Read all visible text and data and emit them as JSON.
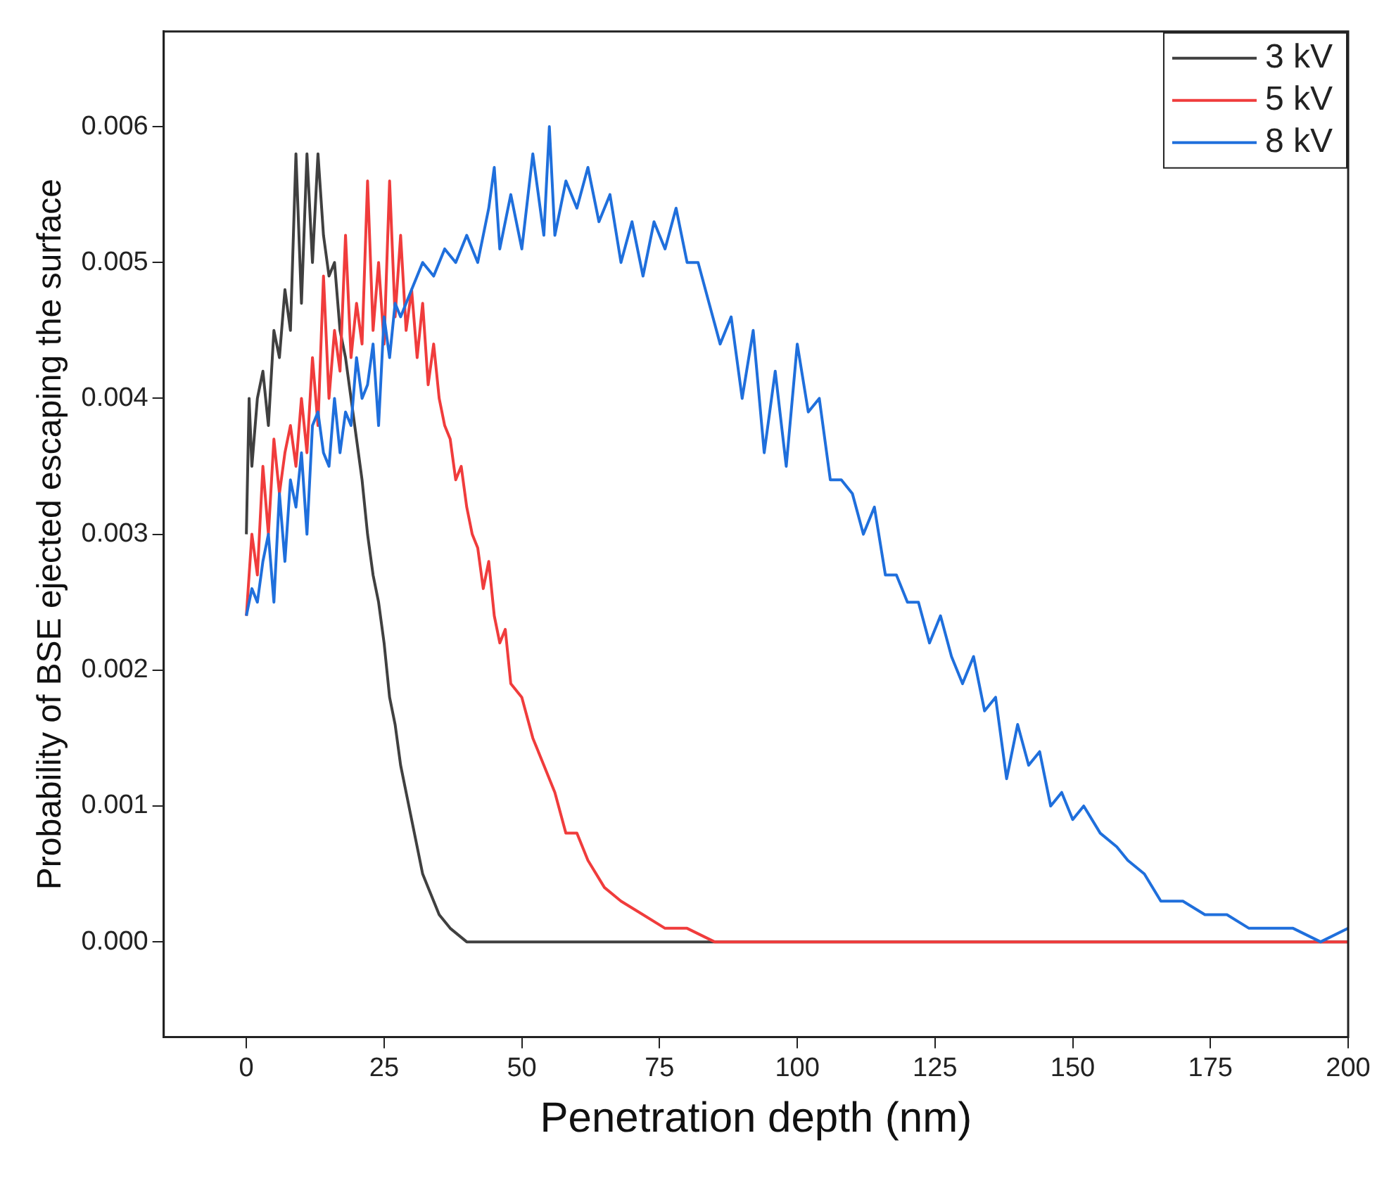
{
  "chart_data": {
    "type": "line",
    "xlabel": "Penetration depth (nm)",
    "ylabel": "Probability of BSE ejected escaping the surface",
    "xlim": [
      -15,
      200
    ],
    "xticks": [
      0,
      25,
      50,
      75,
      100,
      125,
      150,
      175,
      200
    ],
    "ylim": [
      -0.0007,
      0.0067
    ],
    "yticks": [
      {
        "value": 0,
        "label": "0.000"
      },
      {
        "value": 0.001,
        "label": "0.001"
      },
      {
        "value": 0.002,
        "label": "0.002"
      },
      {
        "value": 0.003,
        "label": "0.003"
      },
      {
        "value": 0.004,
        "label": "0.004"
      },
      {
        "value": 0.005,
        "label": "0.005"
      },
      {
        "value": 0.006,
        "label": "0.006"
      }
    ],
    "grid": false,
    "legend": "top right",
    "marker": "none",
    "line_style": "solid",
    "series": [
      {
        "name": "3 kV",
        "color": "#404040",
        "x": [
          0,
          0.5,
          1,
          2,
          3,
          4,
          5,
          6,
          7,
          8,
          9,
          10,
          11,
          12,
          13,
          14,
          15,
          16,
          17,
          18,
          19,
          20,
          21,
          22,
          23,
          24,
          25,
          26,
          27,
          28,
          29,
          30,
          31,
          32,
          33,
          34,
          35,
          37,
          40,
          42,
          200
        ],
        "values": [
          0.003,
          0.004,
          0.0035,
          0.004,
          0.0042,
          0.0038,
          0.0045,
          0.0043,
          0.0048,
          0.0045,
          0.0058,
          0.0047,
          0.0058,
          0.005,
          0.0058,
          0.0052,
          0.0049,
          0.005,
          0.0045,
          0.0043,
          0.004,
          0.0037,
          0.0034,
          0.003,
          0.0027,
          0.0025,
          0.0022,
          0.0018,
          0.0016,
          0.0013,
          0.0011,
          0.0009,
          0.0007,
          0.0005,
          0.0004,
          0.0003,
          0.0002,
          0.0001,
          0,
          0,
          0
        ]
      },
      {
        "name": "5 kV",
        "color": "#f03c3c",
        "x": [
          0,
          1,
          2,
          3,
          4,
          5,
          6,
          7,
          8,
          9,
          10,
          11,
          12,
          13,
          14,
          15,
          16,
          17,
          18,
          19,
          20,
          21,
          22,
          23,
          24,
          25,
          26,
          27,
          28,
          29,
          30,
          31,
          32,
          33,
          34,
          35,
          36,
          37,
          38,
          39,
          40,
          41,
          42,
          43,
          44,
          45,
          46,
          47,
          48,
          50,
          52,
          54,
          56,
          58,
          60,
          62,
          65,
          68,
          72,
          76,
          80,
          85,
          88,
          200
        ],
        "values": [
          0.0024,
          0.003,
          0.0027,
          0.0035,
          0.003,
          0.0037,
          0.0033,
          0.0036,
          0.0038,
          0.0035,
          0.004,
          0.0036,
          0.0043,
          0.0038,
          0.0049,
          0.004,
          0.0045,
          0.0042,
          0.0052,
          0.0043,
          0.0047,
          0.0044,
          0.0056,
          0.0045,
          0.005,
          0.0044,
          0.0056,
          0.0046,
          0.0052,
          0.0045,
          0.0048,
          0.0043,
          0.0047,
          0.0041,
          0.0044,
          0.004,
          0.0038,
          0.0037,
          0.0034,
          0.0035,
          0.0032,
          0.003,
          0.0029,
          0.0026,
          0.0028,
          0.0024,
          0.0022,
          0.0023,
          0.0019,
          0.0018,
          0.0015,
          0.0013,
          0.0011,
          0.0008,
          0.0008,
          0.0006,
          0.0004,
          0.0003,
          0.0002,
          0.0001,
          0.0001,
          0,
          0,
          0
        ]
      },
      {
        "name": "8 kV",
        "color": "#1f6fdc",
        "x": [
          0,
          1,
          2,
          3,
          4,
          5,
          6,
          7,
          8,
          9,
          10,
          11,
          12,
          13,
          14,
          15,
          16,
          17,
          18,
          19,
          20,
          21,
          22,
          23,
          24,
          25,
          26,
          27,
          28,
          30,
          32,
          34,
          36,
          38,
          40,
          42,
          44,
          45,
          46,
          48,
          50,
          52,
          54,
          55,
          56,
          58,
          60,
          62,
          64,
          66,
          68,
          70,
          72,
          74,
          76,
          78,
          80,
          82,
          84,
          86,
          88,
          90,
          92,
          94,
          96,
          98,
          100,
          102,
          104,
          106,
          108,
          110,
          112,
          114,
          116,
          118,
          120,
          122,
          124,
          126,
          128,
          130,
          132,
          134,
          136,
          138,
          140,
          142,
          144,
          146,
          148,
          150,
          152,
          155,
          158,
          160,
          163,
          166,
          170,
          174,
          178,
          182,
          186,
          190,
          195,
          200
        ],
        "values": [
          0.0024,
          0.0026,
          0.0025,
          0.0028,
          0.003,
          0.0025,
          0.0033,
          0.0028,
          0.0034,
          0.0032,
          0.0036,
          0.003,
          0.0038,
          0.0039,
          0.0036,
          0.0035,
          0.004,
          0.0036,
          0.0039,
          0.0038,
          0.0043,
          0.004,
          0.0041,
          0.0044,
          0.0038,
          0.0046,
          0.0043,
          0.0047,
          0.0046,
          0.0048,
          0.005,
          0.0049,
          0.0051,
          0.005,
          0.0052,
          0.005,
          0.0054,
          0.0057,
          0.0051,
          0.0055,
          0.0051,
          0.0058,
          0.0052,
          0.006,
          0.0052,
          0.0056,
          0.0054,
          0.0057,
          0.0053,
          0.0055,
          0.005,
          0.0053,
          0.0049,
          0.0053,
          0.0051,
          0.0054,
          0.005,
          0.005,
          0.0047,
          0.0044,
          0.0046,
          0.004,
          0.0045,
          0.0036,
          0.0042,
          0.0035,
          0.0044,
          0.0039,
          0.004,
          0.0034,
          0.0034,
          0.0033,
          0.003,
          0.0032,
          0.0027,
          0.0027,
          0.0025,
          0.0025,
          0.0022,
          0.0024,
          0.0021,
          0.0019,
          0.0021,
          0.0017,
          0.0018,
          0.0012,
          0.0016,
          0.0013,
          0.0014,
          0.001,
          0.0011,
          0.0009,
          0.001,
          0.0008,
          0.0007,
          0.0006,
          0.0005,
          0.0003,
          0.0003,
          0.0002,
          0.0002,
          0.0001,
          0.0001,
          0.0001,
          0,
          0.0001
        ]
      }
    ]
  }
}
